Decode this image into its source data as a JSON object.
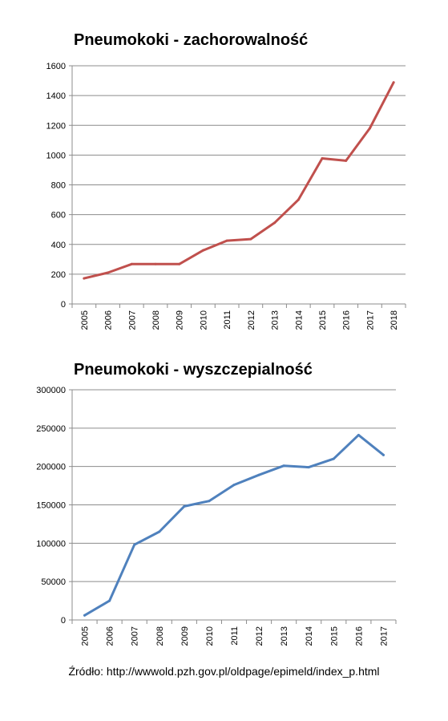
{
  "chart_data": [
    {
      "type": "line",
      "title": "Pneumokoki - zachorowalność",
      "x": [
        "2005",
        "2006",
        "2007",
        "2008",
        "2009",
        "2010",
        "2011",
        "2012",
        "2013",
        "2014",
        "2015",
        "2016",
        "2017",
        "2018"
      ],
      "series": [
        {
          "values": [
            172,
            210,
            268,
            268,
            268,
            360,
            425,
            436,
            545,
            700,
            978,
            962,
            1180,
            1488
          ],
          "color": "#c0504d"
        }
      ],
      "ylim": [
        0,
        1600
      ],
      "yticks": [
        0,
        200,
        400,
        600,
        800,
        1000,
        1200,
        1400,
        1600
      ],
      "ytick_labels": [
        "0",
        "200",
        "400",
        "600",
        "800",
        "1000",
        "1200",
        "1400",
        "1600"
      ],
      "grid": true,
      "legend": "none"
    },
    {
      "type": "line",
      "title": "Pneumokoki - wyszczepialność",
      "x": [
        "2005",
        "2006",
        "2007",
        "2008",
        "2009",
        "2010",
        "2011",
        "2012",
        "2013",
        "2014",
        "2015",
        "2016",
        "2017"
      ],
      "series": [
        {
          "values": [
            6000,
            25000,
            98000,
            115000,
            148000,
            155000,
            176000,
            189000,
            201000,
            199000,
            210000,
            241000,
            215000
          ],
          "color": "#4f81bd"
        }
      ],
      "ylim": [
        0,
        300000
      ],
      "yticks": [
        0,
        50000,
        100000,
        150000,
        200000,
        250000,
        300000
      ],
      "ytick_labels": [
        "0",
        "50000",
        "100000",
        "150000",
        "200000",
        "250000",
        "300000"
      ],
      "grid": true,
      "legend": "none"
    }
  ],
  "source_note": "Źródło: http://wwwold.pzh.gov.pl/oldpage/epimeld/index_p.html"
}
